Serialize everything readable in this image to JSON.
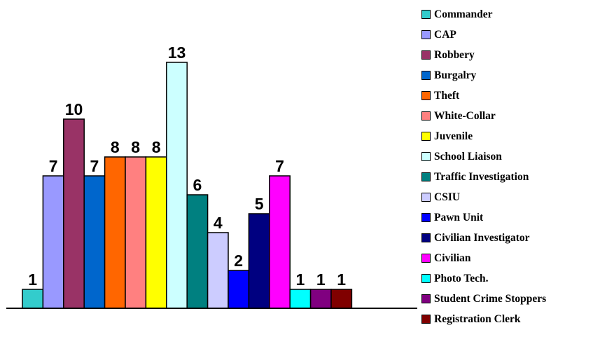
{
  "chart_data": {
    "type": "bar",
    "categories": [
      "Commander",
      "CAP",
      "Robbery",
      "Burgalry",
      "Theft",
      "White-Collar",
      "Juvenile",
      "School Liaison",
      "Traffic Investigation",
      "CSIU",
      "Pawn Unit",
      "Civilian Investigator",
      "Civilian",
      "Photo Tech.",
      "Student Crime Stoppers",
      "Registration Clerk"
    ],
    "values": [
      1,
      7,
      10,
      7,
      8,
      8,
      8,
      13,
      6,
      4,
      2,
      5,
      7,
      1,
      1,
      1
    ],
    "colors": [
      "#33CCCC",
      "#9999FF",
      "#993366",
      "#0066CC",
      "#FF6600",
      "#FF8080",
      "#FFFF00",
      "#CCFFFF",
      "#008080",
      "#CCCCFF",
      "#0000FF",
      "#000080",
      "#FF00FF",
      "#00FFFF",
      "#800080",
      "#800000"
    ],
    "ylim": [
      0,
      13
    ],
    "grid": false,
    "legend": "right",
    "data_labels": true
  }
}
